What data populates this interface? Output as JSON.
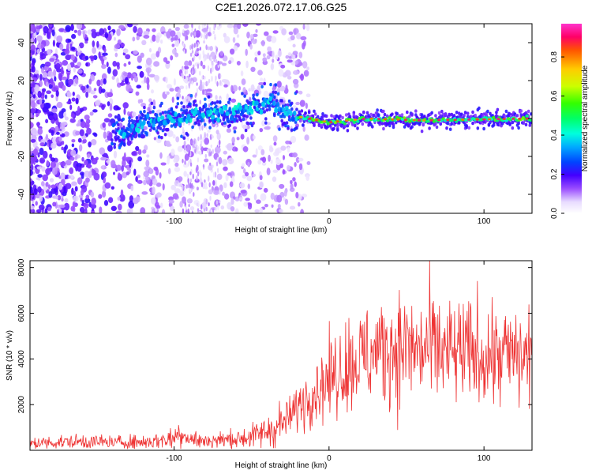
{
  "title": "C2E1.2026.072.17.06.G25",
  "chart_data": [
    {
      "type": "heatmap",
      "name": "spectrogram",
      "xlabel": "Height of straight line (km)",
      "ylabel": "Frequency (Hz)",
      "xlim": [
        -193,
        131
      ],
      "ylim": [
        -50,
        50
      ],
      "xticks": [
        -100,
        0,
        100
      ],
      "yticks": [
        -40,
        -20,
        0,
        20,
        40
      ],
      "ridge": [
        {
          "x": -133,
          "y": -8
        },
        {
          "x": -118,
          "y": -2
        },
        {
          "x": -100,
          "y": 0
        },
        {
          "x": -80,
          "y": 3
        },
        {
          "x": -62,
          "y": 3
        },
        {
          "x": -45,
          "y": 6
        },
        {
          "x": -38,
          "y": 9
        },
        {
          "x": -30,
          "y": 4
        },
        {
          "x": -20,
          "y": 1
        },
        {
          "x": 0,
          "y": -2
        },
        {
          "x": 25,
          "y": 0
        },
        {
          "x": 60,
          "y": -1
        },
        {
          "x": 131,
          "y": 0
        }
      ],
      "colorbar": {
        "label": "Normalized spectral amplitude",
        "range": [
          0,
          0.97
        ],
        "ticks": [
          0,
          0.2,
          0.4,
          0.6,
          0.8
        ],
        "tick_labels": [
          "0.0",
          "0.2",
          "0.4",
          "0.6",
          "0.8"
        ]
      }
    },
    {
      "type": "line",
      "name": "snr",
      "xlabel": "Height of straight line (km)",
      "ylabel": "SNR (10 * v/v)",
      "xlim": [
        -193,
        131
      ],
      "ylim": [
        0,
        8300
      ],
      "xticks": [
        -100,
        0,
        100
      ],
      "yticks": [
        2000,
        4000,
        6000,
        8000
      ],
      "color": "#ee3333",
      "series": [
        {
          "name": "SNR",
          "x": [
            -193,
            -180,
            -160,
            -140,
            -120,
            -110,
            -100,
            -95,
            -90,
            -80,
            -70,
            -60,
            -50,
            -45,
            -40,
            -35,
            -30,
            -25,
            -20,
            -15,
            -10,
            -5,
            0,
            5,
            10,
            15,
            20,
            25,
            30,
            35,
            40,
            45,
            50,
            55,
            60,
            65,
            70,
            75,
            80,
            85,
            90,
            95,
            100,
            105,
            110,
            115,
            120,
            125,
            131
          ],
          "values": [
            300,
            350,
            380,
            350,
            360,
            420,
            550,
            850,
            500,
            400,
            450,
            500,
            600,
            700,
            850,
            1000,
            1200,
            1500,
            1900,
            2300,
            2600,
            2900,
            3100,
            3400,
            3700,
            3900,
            4000,
            4100,
            4300,
            4400,
            4500,
            4500,
            4600,
            4400,
            4300,
            4500,
            4400,
            4300,
            4200,
            4300,
            4200,
            4300,
            4100,
            4200,
            4100,
            4200,
            4100,
            4000,
            4200
          ]
        }
      ]
    }
  ]
}
